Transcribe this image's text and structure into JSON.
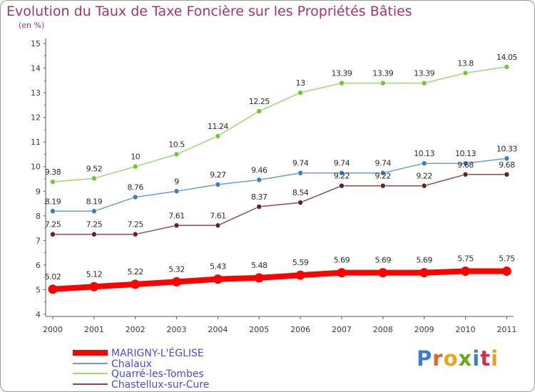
{
  "title": "Evolution du Taux de Taxe Foncière sur les Propriétés Bâties",
  "unit_label": "(en %)",
  "logo": {
    "text": "Proxiti",
    "letter_colors": [
      "#3a80c8",
      "#e8622c",
      "#f0a020",
      "#6aa820",
      "#3a80c8",
      "#d82c4c",
      "#e8a020"
    ]
  },
  "chart_data": {
    "type": "line",
    "title": "Evolution du Taux de Taxe Foncière sur les Propriétés Bâties",
    "ylabel": "(en %)",
    "x": [
      "2000",
      "2001",
      "2002",
      "2003",
      "2004",
      "2005",
      "2006",
      "2007",
      "2008",
      "2009",
      "2010",
      "2011"
    ],
    "ylim": [
      4,
      15
    ],
    "yticks": [
      "4",
      "5",
      "6",
      "7",
      "8",
      "9",
      "10",
      "11",
      "12",
      "13",
      "14",
      "15"
    ],
    "grid": false,
    "legend": "bottom-left",
    "series": [
      {
        "name": "MARIGNY-L'ÉGLISE",
        "color": "#ff0000",
        "width": 8,
        "dot": 6.5,
        "values": [
          5.02,
          5.12,
          5.22,
          5.32,
          5.43,
          5.48,
          5.59,
          5.69,
          5.69,
          5.69,
          5.75,
          5.75
        ],
        "labels": [
          "5.02",
          "5.12",
          "5.22",
          "5.32",
          "5.43",
          "5.48",
          "5.59",
          "5.69",
          "5.69",
          "5.69",
          "5.75",
          "5.75"
        ]
      },
      {
        "name": "Chalaux",
        "color": "#6e9ccc",
        "dot_color": "#3e7ec0",
        "width": 1.5,
        "dot": 3.5,
        "values": [
          8.19,
          8.19,
          8.76,
          9,
          9.27,
          9.46,
          9.74,
          9.74,
          9.74,
          10.13,
          10.13,
          10.33
        ],
        "labels": [
          "8.19",
          "8.19",
          "8.76",
          "9",
          "9.27",
          "9.46",
          "9.74",
          "9.74",
          "9.74",
          "10.13",
          "10.13",
          "10.33"
        ]
      },
      {
        "name": "Quarré-les-Tombes",
        "color": "#9ed86e",
        "dot_color": "#72c43c",
        "width": 1.5,
        "dot": 3.5,
        "values": [
          9.38,
          9.52,
          10,
          10.5,
          11.24,
          12.25,
          13,
          13.39,
          13.39,
          13.39,
          13.8,
          14.05
        ],
        "labels": [
          "9.38",
          "9.52",
          "10",
          "10.5",
          "11.24",
          "12.25",
          "13",
          "13.39",
          "13.39",
          "13.39",
          "13.8",
          "14.05"
        ]
      },
      {
        "name": "Chastellux-sur-Cure",
        "color": "#8e4a4a",
        "dot_color": "#6a1e1e",
        "width": 1.5,
        "dot": 3.5,
        "values": [
          7.25,
          7.25,
          7.25,
          7.61,
          7.61,
          8.37,
          8.54,
          9.22,
          9.22,
          9.22,
          9.68,
          9.68
        ],
        "labels": [
          "7.25",
          "7.25",
          "7.25",
          "7.61",
          "7.61",
          "8.37",
          "8.54",
          "9.22",
          "9.22",
          "9.22",
          "9.68",
          "9.68"
        ]
      }
    ]
  },
  "colors": {
    "title": "#a4346e",
    "axis": "#5a5a5a",
    "value_label": "#2c2c2c",
    "legend_text": "#4b4bd8"
  }
}
